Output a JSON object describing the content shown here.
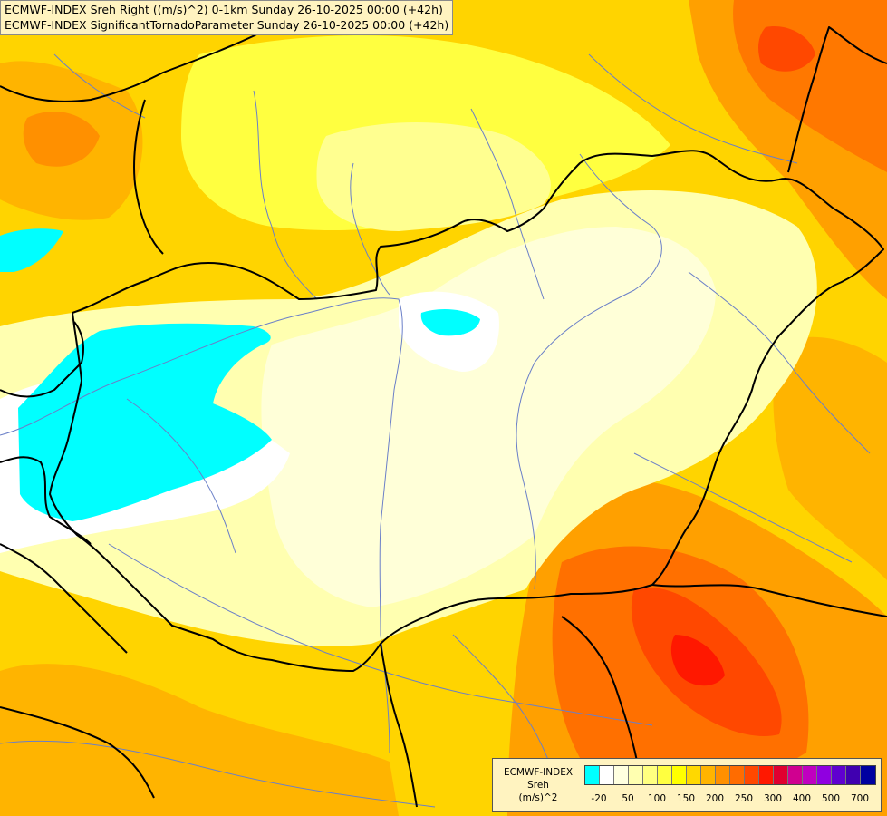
{
  "header": {
    "line1": "ECMWF-INDEX Sreh Right ((m/s)^2) 0-1km Sunday 26-10-2025 00:00 (+42h)",
    "line2": "ECMWF-INDEX SignificantTornadoParameter Sunday 26-10-2025 00:00 (+42h)"
  },
  "legend": {
    "label_lines": [
      "ECMWF-INDEX",
      "Sreh",
      "(m/s)^2"
    ],
    "colors": [
      "#00ffff",
      "#ffffff",
      "#ffffe0",
      "#ffffb0",
      "#ffff80",
      "#ffff40",
      "#ffff00",
      "#ffd800",
      "#ffb400",
      "#ff9000",
      "#ff6c00",
      "#ff4800",
      "#ff1800",
      "#e00030",
      "#d00090",
      "#c000c0",
      "#9000e0",
      "#6000d0",
      "#4000b0",
      "#0000a0"
    ],
    "ticks": [
      {
        "label": "-20",
        "idx": 1
      },
      {
        "label": "50",
        "idx": 3
      },
      {
        "label": "100",
        "idx": 5
      },
      {
        "label": "150",
        "idx": 7
      },
      {
        "label": "200",
        "idx": 9
      },
      {
        "label": "250",
        "idx": 11
      },
      {
        "label": "300",
        "idx": 13
      },
      {
        "label": "400",
        "idx": 15
      },
      {
        "label": "500",
        "idx": 17
      },
      {
        "label": "700",
        "idx": 19
      }
    ]
  }
}
